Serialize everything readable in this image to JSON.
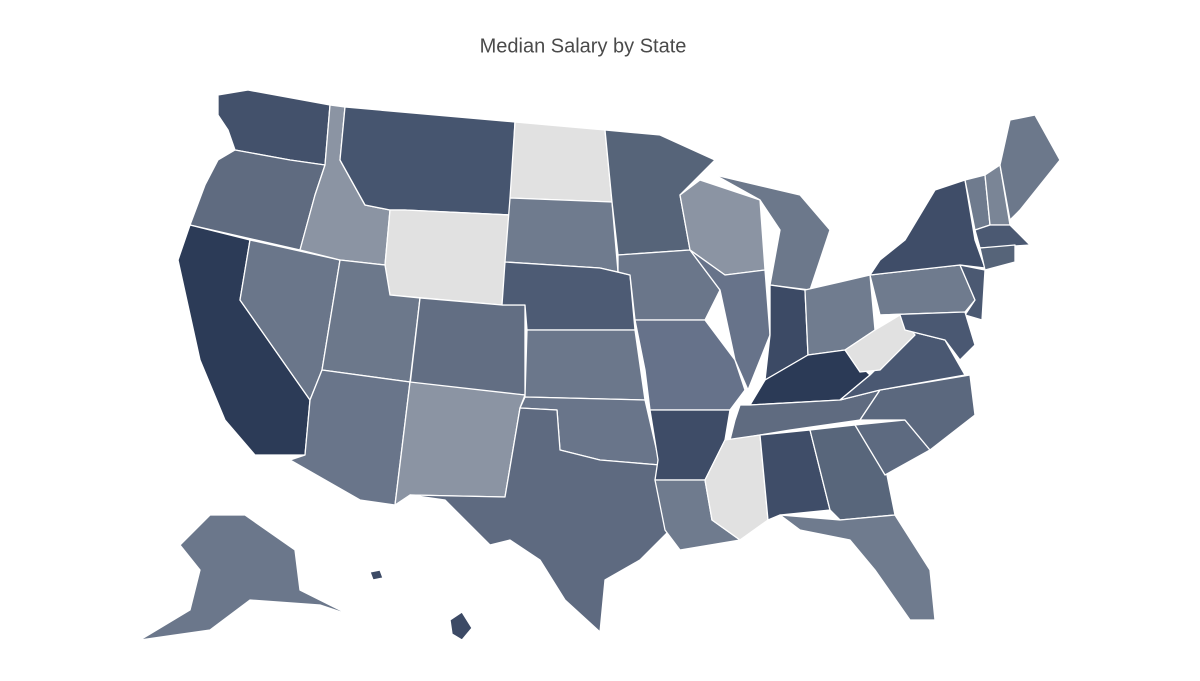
{
  "chart_data": {
    "type": "choropleth",
    "title": "Median Salary by State",
    "region_colors": [
      "#43516b",
      "#5f6b80",
      "#2c3b57",
      "#6a768a",
      "#8b94a3",
      "#46556f",
      "#e1e1e1",
      "#6c788b",
      "#626e83",
      "#69758a",
      "#8b94a3",
      "#e1e1e1",
      "#6f7b8e",
      "#4d5b74",
      "#6b778b",
      "#69758a",
      "#5e6a80",
      "#566479",
      "#6a768a",
      "#66728a",
      "#3e4c67",
      "#6f7b8e",
      "#8b94a3",
      "#67738a",
      "#6c788b",
      "#3c4a65",
      "#707c8f",
      "#2b3a56",
      "#5f6b80",
      "#e1e1e1",
      "#3f4d68",
      "#58667b",
      "#6f7b8e",
      "#5d6a80",
      "#5b687e",
      "#4a5872",
      "#e1e1e1",
      "#6f7b8e",
      "#3f4d68",
      "#4b5972",
      "#4a5872",
      "#6f7b8e",
      "#7a8596",
      "#6c788b",
      "#4b5972",
      "#566479",
      "#6b778b",
      "#3c4a65",
      "#3c4a65"
    ]
  }
}
